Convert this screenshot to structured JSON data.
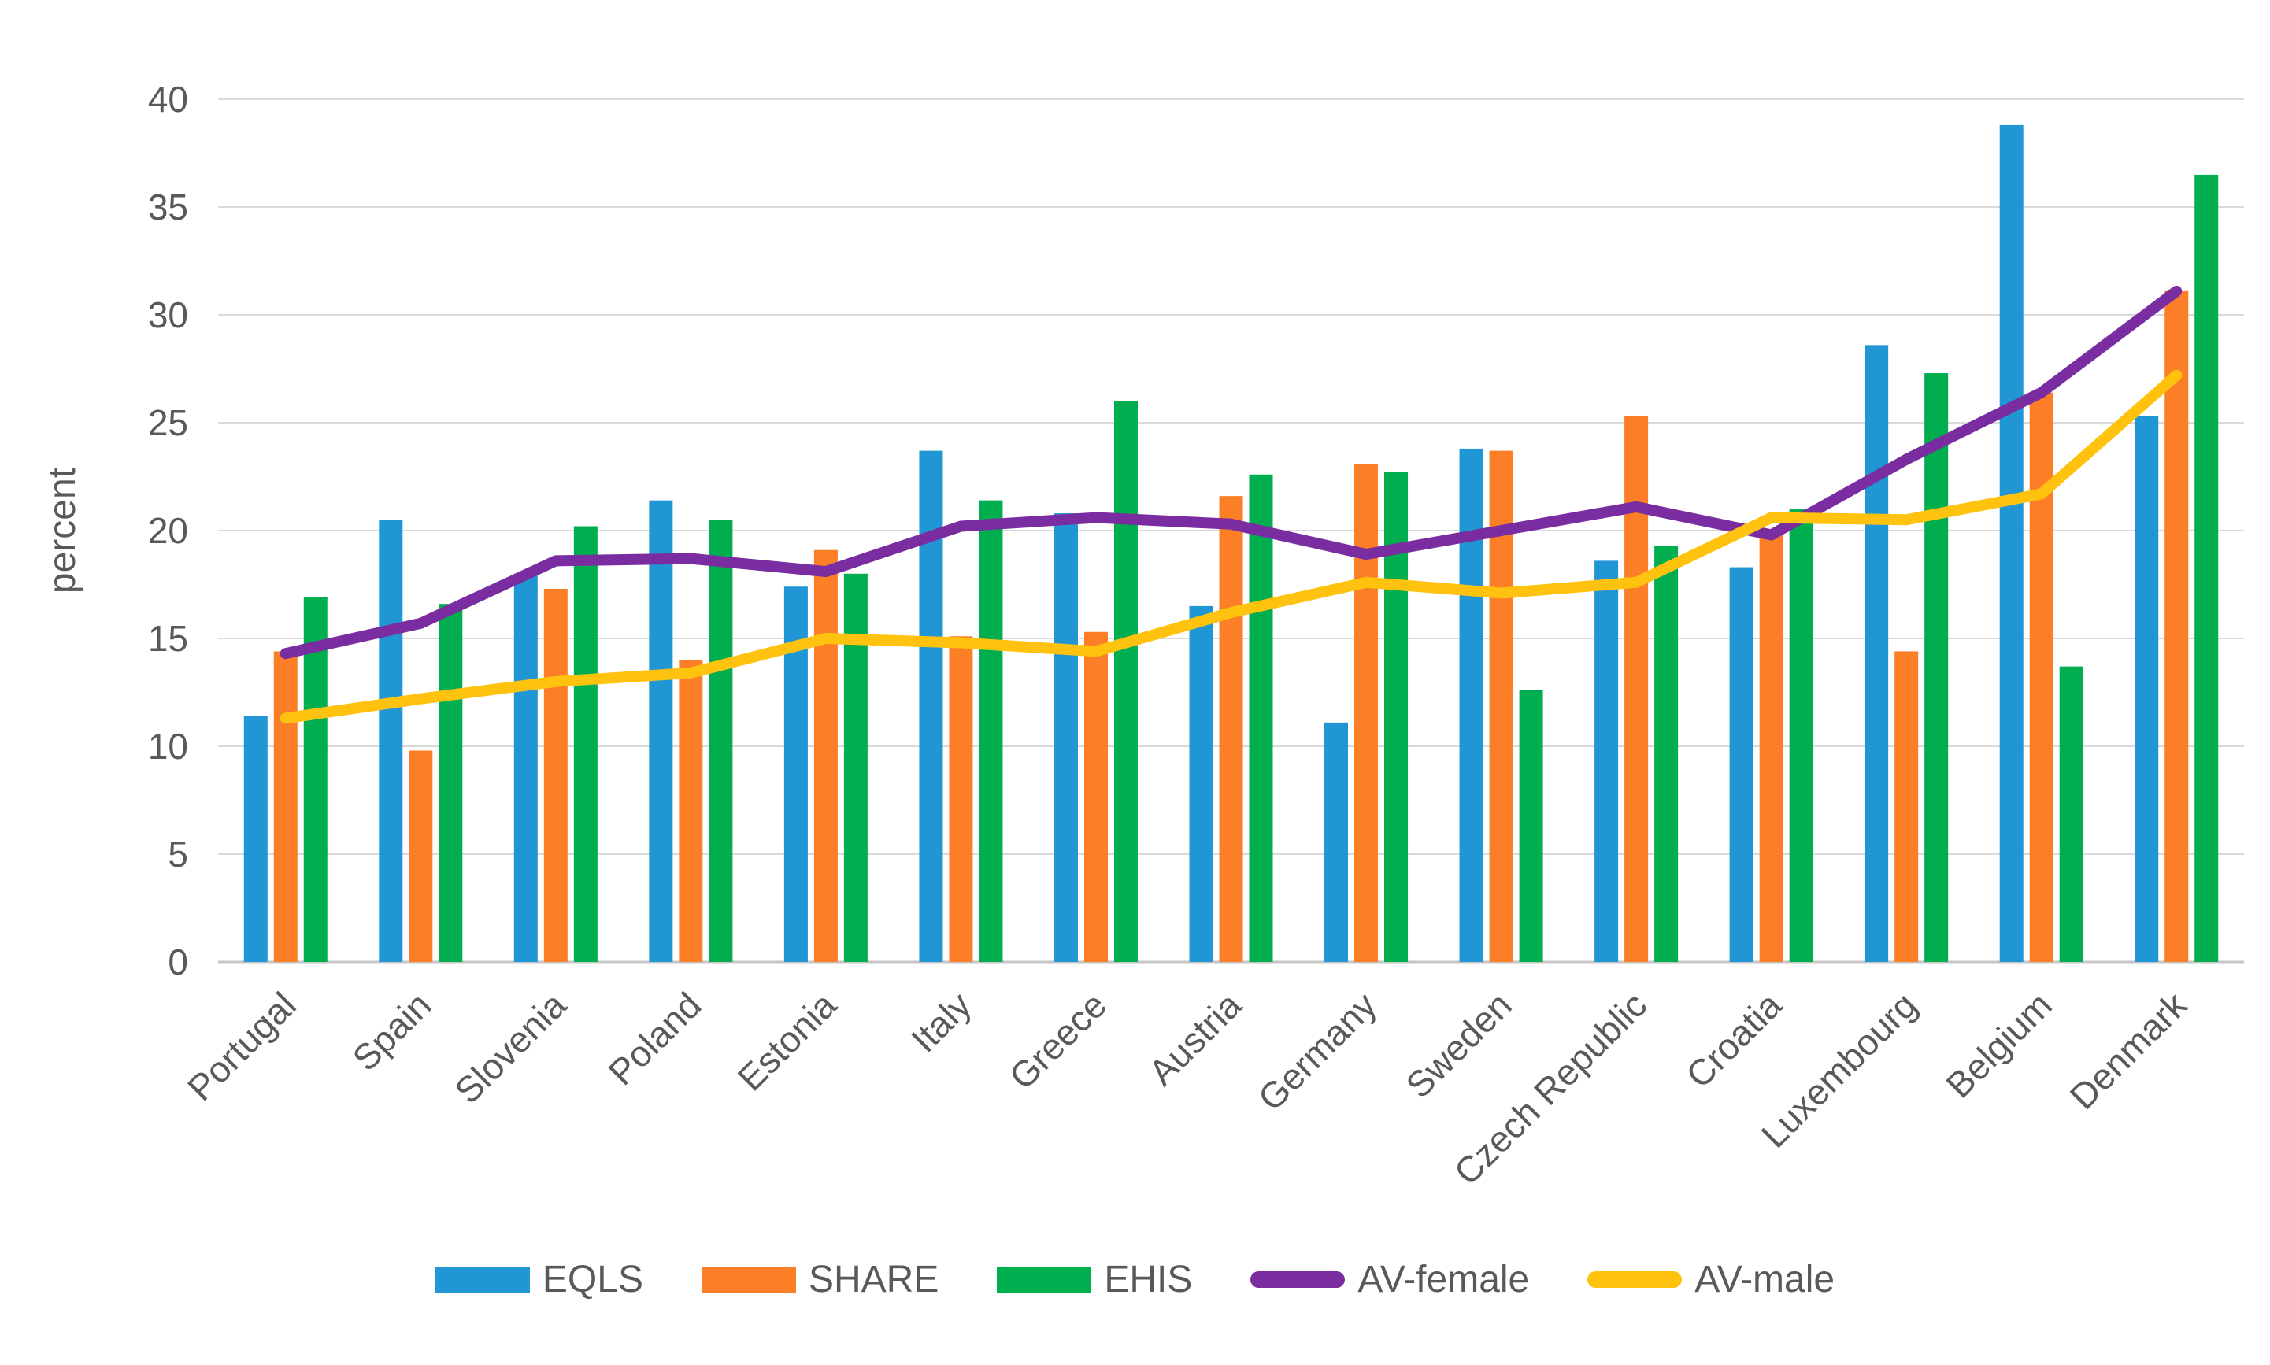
{
  "chart_data": {
    "type": "bar",
    "title": "",
    "xlabel": "",
    "ylabel": "percent",
    "ylim": [
      0,
      40
    ],
    "yticks": [
      0,
      5,
      10,
      15,
      20,
      25,
      30,
      35,
      40
    ],
    "grid": "horizontal-only",
    "gridline_color": "#D9D9D9",
    "axis_line_color": "#C6C6C6",
    "text_color": "#595959",
    "legend_position": "bottom",
    "categories": [
      "Portugal",
      "Spain",
      "Slovenia",
      "Poland",
      "Estonia",
      "Italy",
      "Greece",
      "Austria",
      "Germany",
      "Sweden",
      "Czech Republic",
      "Croatia",
      "Luxembourg",
      "Belgium",
      "Denmark"
    ],
    "series": [
      {
        "name": "EQLS",
        "type": "bar",
        "color": "#2196D5",
        "values": [
          11.4,
          20.5,
          18.0,
          21.4,
          17.4,
          23.7,
          20.8,
          16.5,
          11.1,
          23.8,
          18.6,
          18.3,
          28.6,
          38.8,
          25.3
        ]
      },
      {
        "name": "SHARE",
        "type": "bar",
        "color": "#FC7E27",
        "values": [
          14.4,
          9.8,
          17.3,
          14.0,
          19.1,
          15.1,
          15.3,
          21.6,
          23.1,
          23.7,
          25.3,
          19.8,
          14.4,
          26.4,
          31.1
        ]
      },
      {
        "name": "EHIS",
        "type": "bar",
        "color": "#00AE4F",
        "values": [
          16.9,
          16.6,
          20.2,
          20.5,
          18.0,
          21.4,
          26.0,
          22.6,
          22.7,
          12.6,
          19.3,
          21.0,
          27.3,
          13.7,
          36.5
        ]
      },
      {
        "name": "AV-female",
        "type": "line",
        "color": "#7A2DA0",
        "values": [
          14.3,
          15.7,
          18.6,
          18.7,
          18.1,
          20.2,
          20.6,
          20.3,
          18.9,
          20.0,
          21.1,
          19.8,
          23.3,
          26.4,
          31.1
        ]
      },
      {
        "name": "AV-male",
        "type": "line",
        "color": "#FFC20E",
        "values": [
          11.3,
          12.2,
          13.0,
          13.4,
          15.0,
          14.8,
          14.4,
          16.2,
          17.6,
          17.1,
          17.6,
          20.6,
          20.5,
          21.7,
          27.2
        ]
      }
    ]
  }
}
